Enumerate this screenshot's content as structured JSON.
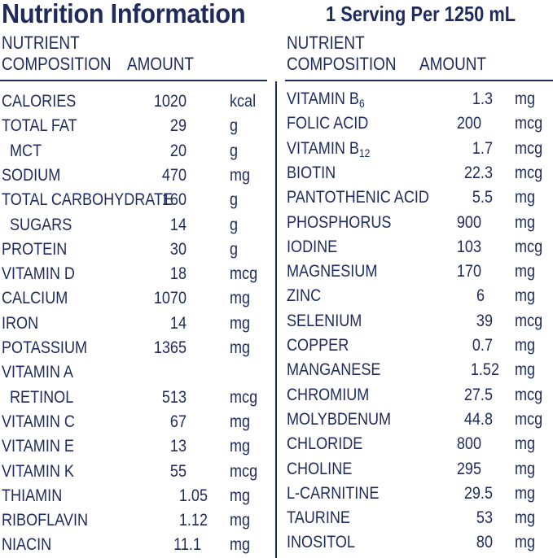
{
  "header": {
    "title": "Nutrition Information",
    "serving": "1 Serving Per 1250 mL"
  },
  "columns_header": {
    "nutrient_line1": "NUTRIENT",
    "nutrient_line2": "COMPOSITION",
    "amount": "AMOUNT"
  },
  "left_rows": [
    {
      "name": "CALORIES",
      "amount": "1020",
      "unit": "kcal",
      "indent": false
    },
    {
      "name": "TOTAL FAT",
      "amount": "29",
      "unit": "g",
      "indent": false
    },
    {
      "name": "MCT",
      "amount": "20",
      "unit": "g",
      "indent": true
    },
    {
      "name": "SODIUM",
      "amount": "470",
      "unit": "mg",
      "indent": false
    },
    {
      "name": "TOTAL CARBOHYDRATE",
      "amount": "160",
      "unit": "g",
      "indent": false
    },
    {
      "name": "SUGARS",
      "amount": "14",
      "unit": "g",
      "indent": true
    },
    {
      "name": "PROTEIN",
      "amount": "30",
      "unit": "g",
      "indent": false
    },
    {
      "name": "VITAMIN D",
      "amount": "18",
      "unit": "mcg",
      "indent": false
    },
    {
      "name": "CALCIUM",
      "amount": "1070",
      "unit": "mg",
      "indent": false
    },
    {
      "name": "IRON",
      "amount": "14",
      "unit": "mg",
      "indent": false
    },
    {
      "name": "POTASSIUM",
      "amount": "1365",
      "unit": "mg",
      "indent": false
    },
    {
      "name": "VITAMIN A",
      "amount": "",
      "unit": "",
      "indent": false
    },
    {
      "name": "RETINOL",
      "amount": "513",
      "unit": "mcg",
      "indent": true
    },
    {
      "name": "VITAMIN C",
      "amount": "67",
      "unit": "mg",
      "indent": false
    },
    {
      "name": "VITAMIN E",
      "amount": "13",
      "unit": "mg",
      "indent": false
    },
    {
      "name": "VITAMIN K",
      "amount": "55",
      "unit": "mcg",
      "indent": false
    },
    {
      "name": "THIAMIN",
      "amount": "1.05",
      "unit": "mg",
      "indent": false
    },
    {
      "name": "RIBOFLAVIN",
      "amount": "1.12",
      "unit": "mg",
      "indent": false
    },
    {
      "name": "NIACIN",
      "amount": "11.1",
      "unit": "mg",
      "indent": false
    }
  ],
  "right_rows": [
    {
      "name": "VITAMIN B",
      "sub": "6",
      "amount": "1.3",
      "unit": "mg"
    },
    {
      "name": "FOLIC ACID",
      "sub": "",
      "amount": "200",
      "unit": "mcg"
    },
    {
      "name": "VITAMIN B",
      "sub": "12",
      "amount": "1.7",
      "unit": "mcg"
    },
    {
      "name": "BIOTIN",
      "sub": "",
      "amount": "22.3",
      "unit": "mcg"
    },
    {
      "name": "PANTOTHENIC ACID",
      "sub": "",
      "amount": "5.5",
      "unit": "mg"
    },
    {
      "name": "PHOSPHORUS",
      "sub": "",
      "amount": "900",
      "unit": "mg"
    },
    {
      "name": "IODINE",
      "sub": "",
      "amount": "103",
      "unit": "mcg"
    },
    {
      "name": "MAGNESIUM",
      "sub": "",
      "amount": "170",
      "unit": "mg"
    },
    {
      "name": "ZINC",
      "sub": "",
      "amount": "6",
      "unit": "mg"
    },
    {
      "name": "SELENIUM",
      "sub": "",
      "amount": "39",
      "unit": "mcg"
    },
    {
      "name": "COPPER",
      "sub": "",
      "amount": "0.7",
      "unit": "mg"
    },
    {
      "name": "MANGANESE",
      "sub": "",
      "amount": "1.52",
      "unit": "mg"
    },
    {
      "name": "CHROMIUM",
      "sub": "",
      "amount": "27.5",
      "unit": "mcg"
    },
    {
      "name": "MOLYBDENUM",
      "sub": "",
      "amount": "44.8",
      "unit": "mcg"
    },
    {
      "name": "CHLORIDE",
      "sub": "",
      "amount": "800",
      "unit": "mg"
    },
    {
      "name": "CHOLINE",
      "sub": "",
      "amount": "295",
      "unit": "mg"
    },
    {
      "name": "L-CARNITINE",
      "sub": "",
      "amount": "29.5",
      "unit": "mg"
    },
    {
      "name": "TAURINE",
      "sub": "",
      "amount": "53",
      "unit": "mg"
    },
    {
      "name": "INOSITOL",
      "sub": "",
      "amount": "80",
      "unit": "mg"
    }
  ]
}
